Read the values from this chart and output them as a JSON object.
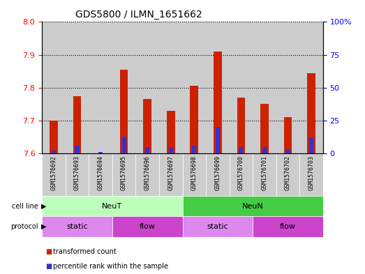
{
  "title": "GDS5800 / ILMN_1651662",
  "samples": [
    "GSM1576692",
    "GSM1576693",
    "GSM1576694",
    "GSM1576695",
    "GSM1576696",
    "GSM1576697",
    "GSM1576698",
    "GSM1576699",
    "GSM1576700",
    "GSM1576701",
    "GSM1576702",
    "GSM1576703"
  ],
  "transformed_counts": [
    7.7,
    7.775,
    7.601,
    7.855,
    7.765,
    7.73,
    7.805,
    7.91,
    7.77,
    7.75,
    7.71,
    7.845
  ],
  "percentile_ranks": [
    2,
    6,
    1,
    13,
    5,
    5,
    6,
    20,
    5,
    5,
    3,
    12
  ],
  "ylim_left": [
    7.6,
    8.0
  ],
  "ylim_right": [
    0,
    100
  ],
  "yticks_left": [
    7.6,
    7.7,
    7.8,
    7.9,
    8.0
  ],
  "yticks_right": [
    0,
    25,
    50,
    75,
    100
  ],
  "bar_color_red": "#cc2200",
  "bar_color_blue": "#3333cc",
  "bar_bottom": 7.6,
  "bg_color": "#cccccc",
  "cell_lines": [
    {
      "label": "NeuT",
      "start": 0,
      "end": 6,
      "color": "#bbffbb"
    },
    {
      "label": "NeuN",
      "start": 6,
      "end": 12,
      "color": "#44cc44"
    }
  ],
  "protocol_groups": [
    {
      "label": "static",
      "start": 0,
      "end": 3,
      "color": "#dd88ee"
    },
    {
      "label": "flow",
      "start": 3,
      "end": 6,
      "color": "#cc44cc"
    },
    {
      "label": "static",
      "start": 6,
      "end": 9,
      "color": "#dd88ee"
    },
    {
      "label": "flow",
      "start": 9,
      "end": 12,
      "color": "#cc44cc"
    }
  ],
  "legend_items": [
    {
      "label": "transformed count",
      "color": "#cc2200"
    },
    {
      "label": "percentile rank within the sample",
      "color": "#3333cc"
    }
  ]
}
